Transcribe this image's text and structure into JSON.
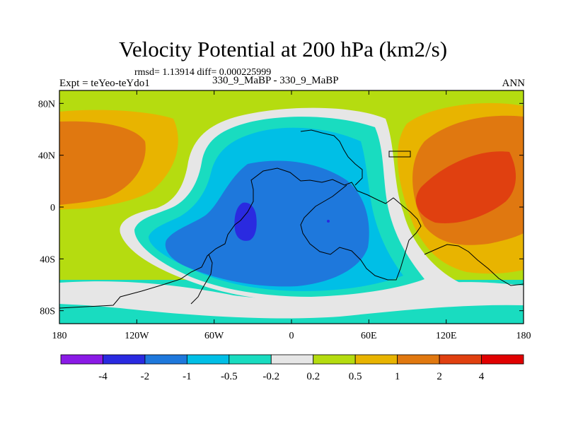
{
  "chart_data": {
    "type": "contour-map",
    "title": "Velocity Potential at 200 hPa (km2/s)",
    "stats": "rmsd= 1.13914 diff= 0.000225999",
    "experiment": "Expt = teYeo-teYdo1",
    "comparison": "330_9_MaBP - 330_9_MaBP",
    "season": "ANN",
    "x_ticks": [
      "180",
      "120W",
      "60W",
      "0",
      "60E",
      "120E",
      "180"
    ],
    "x_values": [
      -180,
      -120,
      -60,
      0,
      60,
      120,
      180
    ],
    "y_ticks": [
      "80N",
      "40N",
      "0",
      "40S",
      "80S"
    ],
    "y_values": [
      80,
      40,
      0,
      -40,
      -80
    ],
    "xlim": [
      -180,
      180
    ],
    "ylim": [
      -90,
      90
    ],
    "levels": [
      "-4",
      "-2",
      "-1",
      "-0.5",
      "-0.2",
      "0.2",
      "0.5",
      "1",
      "2",
      "4"
    ],
    "colors": [
      "#8a1ae6",
      "#2a2ae0",
      "#1e78dc",
      "#00bfe6",
      "#19dcc0",
      "#e6e6e6",
      "#b5dc10",
      "#e8b400",
      "#e07810",
      "#e04010",
      "#e00000"
    ]
  }
}
